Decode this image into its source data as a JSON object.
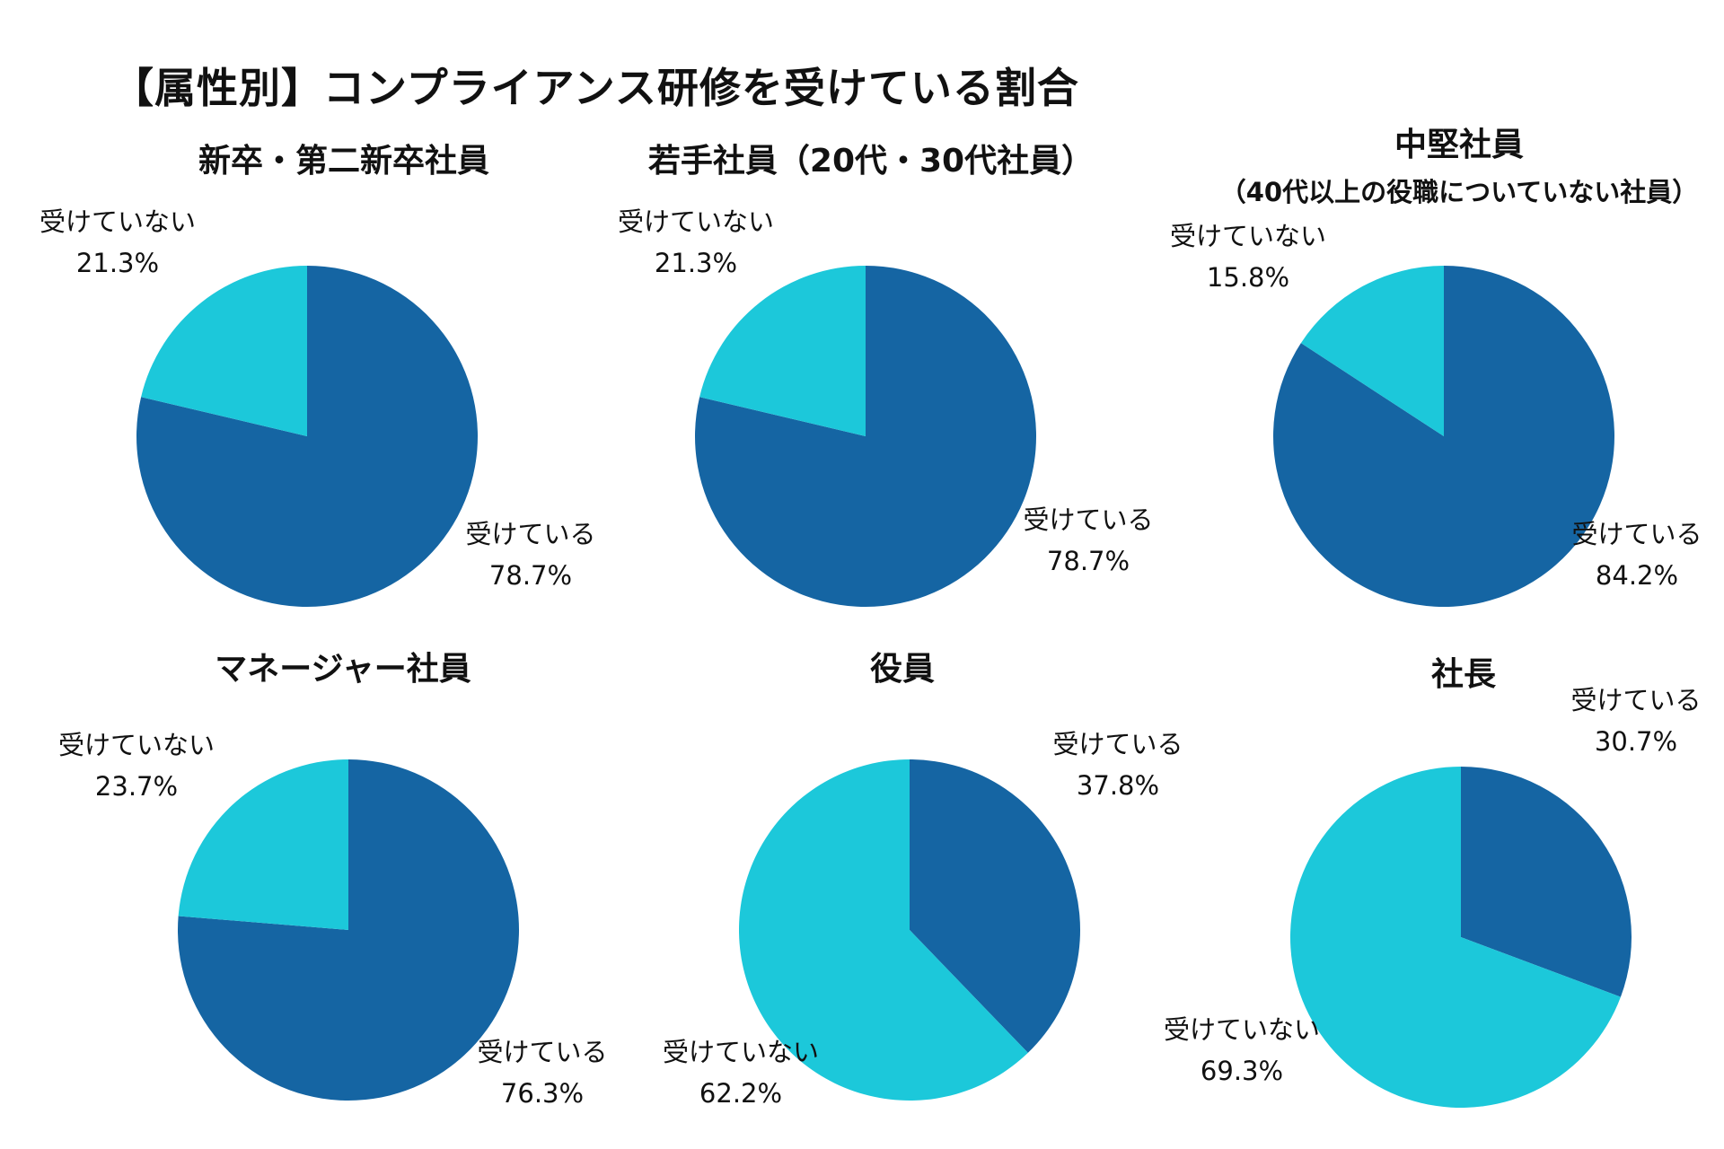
{
  "title": "【属性別】コンプライアンス研修を受けている割合",
  "colors": {
    "taken": "#1565a3",
    "not_taken": "#1cc8da"
  },
  "chart_data": [
    {
      "type": "pie",
      "title": "新卒・第二新卒社員",
      "subtitle": "",
      "slices": [
        {
          "label": "受けている",
          "value": 78.7,
          "display": "78.7%",
          "color": "#1565a3"
        },
        {
          "label": "受けていない",
          "value": 21.3,
          "display": "21.3%",
          "color": "#1cc8da"
        }
      ]
    },
    {
      "type": "pie",
      "title": "若手社員（20代・30代社員）",
      "subtitle": "",
      "slices": [
        {
          "label": "受けている",
          "value": 78.7,
          "display": "78.7%",
          "color": "#1565a3"
        },
        {
          "label": "受けていない",
          "value": 21.3,
          "display": "21.3%",
          "color": "#1cc8da"
        }
      ]
    },
    {
      "type": "pie",
      "title": "中堅社員",
      "subtitle": "（40代以上の役職についていない社員）",
      "slices": [
        {
          "label": "受けている",
          "value": 84.2,
          "display": "84.2%",
          "color": "#1565a3"
        },
        {
          "label": "受けていない",
          "value": 15.8,
          "display": "15.8%",
          "color": "#1cc8da"
        }
      ]
    },
    {
      "type": "pie",
      "title": "マネージャー社員",
      "subtitle": "",
      "slices": [
        {
          "label": "受けている",
          "value": 76.3,
          "display": "76.3%",
          "color": "#1565a3"
        },
        {
          "label": "受けていない",
          "value": 23.7,
          "display": "23.7%",
          "color": "#1cc8da"
        }
      ]
    },
    {
      "type": "pie",
      "title": "役員",
      "subtitle": "",
      "slices": [
        {
          "label": "受けている",
          "value": 37.8,
          "display": "37.8%",
          "color": "#1565a3"
        },
        {
          "label": "受けていない",
          "value": 62.2,
          "display": "62.2%",
          "color": "#1cc8da"
        }
      ]
    },
    {
      "type": "pie",
      "title": "社長",
      "subtitle": "",
      "slices": [
        {
          "label": "受けている",
          "value": 30.7,
          "display": "30.7%",
          "color": "#1565a3"
        },
        {
          "label": "受けていない",
          "value": 69.3,
          "display": "69.3%",
          "color": "#1cc8da"
        }
      ]
    }
  ]
}
